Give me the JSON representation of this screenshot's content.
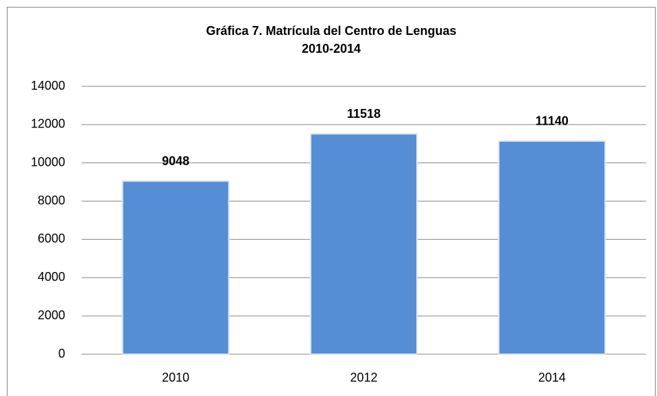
{
  "chart_data": {
    "type": "bar",
    "title": "Gráfica 7. Matrícula del Centro de Lenguas",
    "subtitle": "2010-2014",
    "categories": [
      "2010",
      "2012",
      "2014"
    ],
    "values": [
      9048,
      11518,
      11140
    ],
    "color": "#558ed5",
    "ylim": [
      0,
      14000
    ],
    "yticks": [
      0,
      2000,
      4000,
      6000,
      8000,
      10000,
      12000,
      14000
    ],
    "grid": true
  }
}
